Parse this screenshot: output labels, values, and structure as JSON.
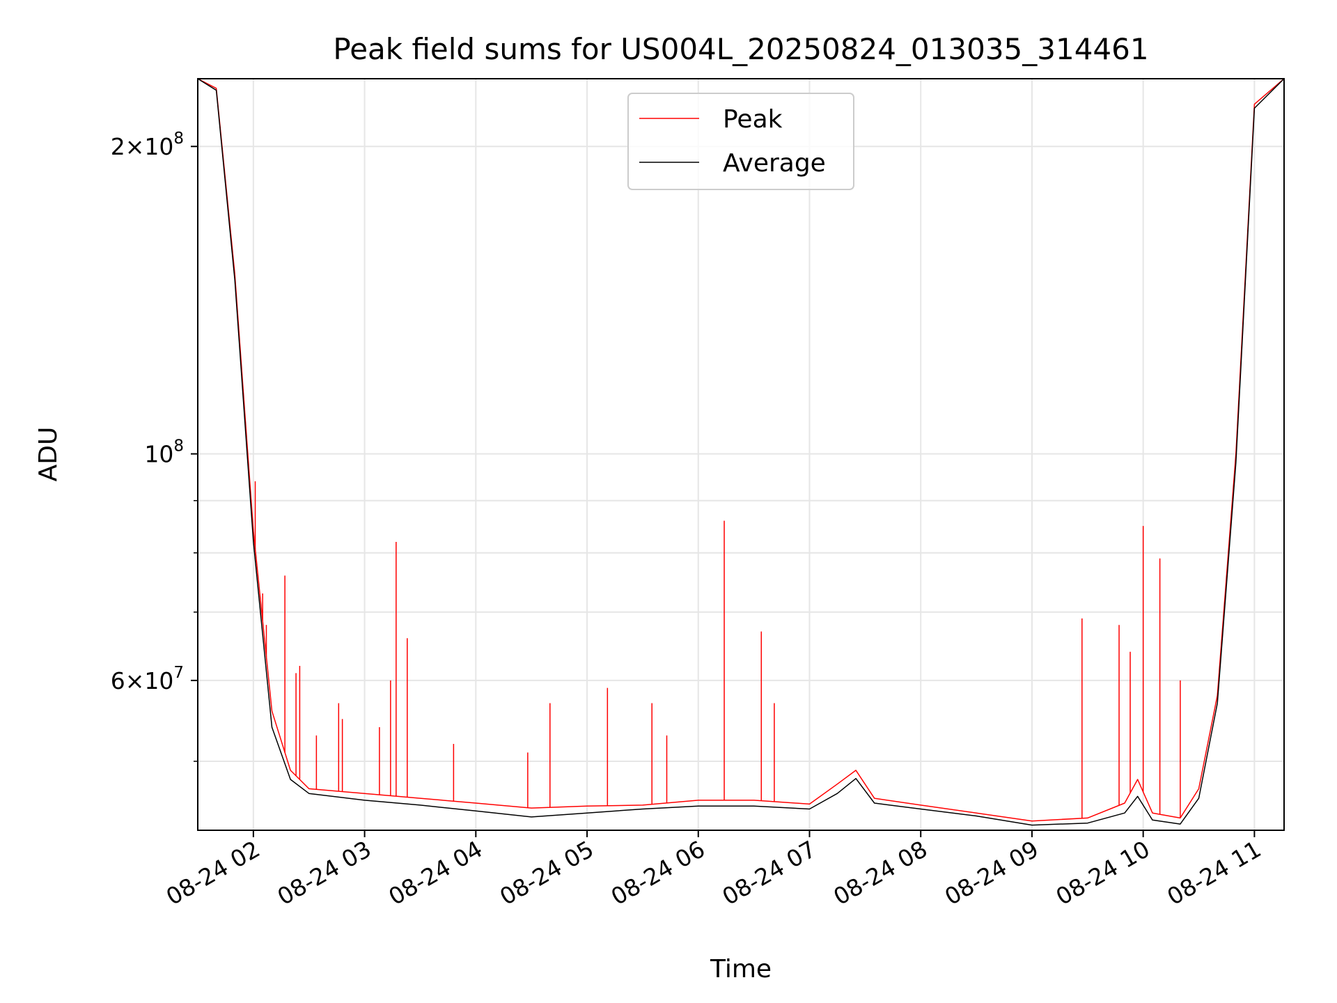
{
  "chart_data": {
    "type": "line",
    "title": "Peak field sums for US004L_20250824_013035_314461",
    "xlabel": "Time",
    "ylabel": "ADU",
    "y_scale": "log",
    "xlim": [
      "2025-08-24 01:30",
      "2025-08-24 11:16"
    ],
    "ylim": [
      42800000,
      233000000
    ],
    "grid": true,
    "legend_position": "top-center",
    "x_ticks": [
      {
        "value": "2025-08-24 02:00",
        "label": "08-24 02"
      },
      {
        "value": "2025-08-24 03:00",
        "label": "08-24 03"
      },
      {
        "value": "2025-08-24 04:00",
        "label": "08-24 04"
      },
      {
        "value": "2025-08-24 05:00",
        "label": "08-24 05"
      },
      {
        "value": "2025-08-24 06:00",
        "label": "08-24 06"
      },
      {
        "value": "2025-08-24 07:00",
        "label": "08-24 07"
      },
      {
        "value": "2025-08-24 08:00",
        "label": "08-24 08"
      },
      {
        "value": "2025-08-24 09:00",
        "label": "08-24 09"
      },
      {
        "value": "2025-08-24 10:00",
        "label": "08-24 10"
      },
      {
        "value": "2025-08-24 11:00",
        "label": "08-24 11"
      }
    ],
    "y_ticks_major": [
      {
        "value": 100000000,
        "base": "10",
        "exp": "8",
        "coef": ""
      },
      {
        "value": 200000000,
        "base": "10",
        "exp": "8",
        "coef": "2"
      },
      {
        "value": 60000000,
        "base": "10",
        "exp": "7",
        "coef": "6"
      }
    ],
    "y_ticks_minor": [
      50000000,
      70000000,
      80000000,
      90000000
    ],
    "series": [
      {
        "name": "Peak",
        "color": "#ff0000",
        "x": [
          "2025-08-24 01:30",
          "2025-08-24 01:40",
          "2025-08-24 01:50",
          "2025-08-24 02:00",
          "2025-08-24 02:10",
          "2025-08-24 02:20",
          "2025-08-24 02:30",
          "2025-08-24 03:00",
          "2025-08-24 03:30",
          "2025-08-24 04:00",
          "2025-08-24 04:30",
          "2025-08-24 05:00",
          "2025-08-24 05:30",
          "2025-08-24 06:00",
          "2025-08-24 06:30",
          "2025-08-24 07:00",
          "2025-08-24 07:15",
          "2025-08-24 07:25",
          "2025-08-24 07:35",
          "2025-08-24 08:00",
          "2025-08-24 08:30",
          "2025-08-24 09:00",
          "2025-08-24 09:30",
          "2025-08-24 09:50",
          "2025-08-24 09:57",
          "2025-08-24 10:05",
          "2025-08-24 10:20",
          "2025-08-24 10:30",
          "2025-08-24 10:40",
          "2025-08-24 10:50",
          "2025-08-24 11:00",
          "2025-08-24 11:16"
        ],
        "values": [
          233000000,
          228000000,
          150000000,
          84000000,
          56000000,
          49000000,
          47000000,
          46500000,
          46000000,
          45500000,
          45000000,
          45200000,
          45300000,
          45800000,
          45800000,
          45400000,
          47500000,
          49000000,
          46000000,
          45300000,
          44500000,
          43700000,
          44000000,
          45500000,
          48000000,
          44500000,
          44000000,
          47000000,
          58000000,
          100000000,
          220000000,
          233000000
        ]
      },
      {
        "name": "Average",
        "color": "#000000",
        "x": [
          "2025-08-24 01:30",
          "2025-08-24 01:40",
          "2025-08-24 01:50",
          "2025-08-24 02:00",
          "2025-08-24 02:10",
          "2025-08-24 02:20",
          "2025-08-24 02:30",
          "2025-08-24 03:00",
          "2025-08-24 03:30",
          "2025-08-24 04:00",
          "2025-08-24 04:30",
          "2025-08-24 05:00",
          "2025-08-24 05:30",
          "2025-08-24 06:00",
          "2025-08-24 06:30",
          "2025-08-24 07:00",
          "2025-08-24 07:15",
          "2025-08-24 07:25",
          "2025-08-24 07:35",
          "2025-08-24 08:00",
          "2025-08-24 08:30",
          "2025-08-24 09:00",
          "2025-08-24 09:30",
          "2025-08-24 09:50",
          "2025-08-24 09:57",
          "2025-08-24 10:05",
          "2025-08-24 10:20",
          "2025-08-24 10:30",
          "2025-08-24 10:40",
          "2025-08-24 10:50",
          "2025-08-24 11:00",
          "2025-08-24 11:16"
        ],
        "values": [
          233000000,
          227000000,
          148000000,
          82000000,
          54000000,
          48000000,
          46500000,
          45800000,
          45300000,
          44700000,
          44100000,
          44500000,
          44900000,
          45200000,
          45200000,
          44900000,
          46500000,
          48100000,
          45500000,
          44900000,
          44200000,
          43300000,
          43500000,
          44500000,
          46200000,
          43800000,
          43400000,
          46000000,
          57000000,
          98000000,
          218000000,
          233000000
        ]
      }
    ],
    "peak_spikes": [
      {
        "x": "2025-08-24 02:01",
        "y": 94000000
      },
      {
        "x": "2025-08-24 02:05",
        "y": 73000000
      },
      {
        "x": "2025-08-24 02:07",
        "y": 68000000
      },
      {
        "x": "2025-08-24 02:17",
        "y": 76000000
      },
      {
        "x": "2025-08-24 02:23",
        "y": 61000000
      },
      {
        "x": "2025-08-24 02:25",
        "y": 62000000
      },
      {
        "x": "2025-08-24 02:34",
        "y": 53000000
      },
      {
        "x": "2025-08-24 02:46",
        "y": 57000000
      },
      {
        "x": "2025-08-24 02:48",
        "y": 55000000
      },
      {
        "x": "2025-08-24 03:08",
        "y": 54000000
      },
      {
        "x": "2025-08-24 03:14",
        "y": 60000000
      },
      {
        "x": "2025-08-24 03:17",
        "y": 82000000
      },
      {
        "x": "2025-08-24 03:23",
        "y": 66000000
      },
      {
        "x": "2025-08-24 03:48",
        "y": 52000000
      },
      {
        "x": "2025-08-24 04:28",
        "y": 51000000
      },
      {
        "x": "2025-08-24 04:40",
        "y": 57000000
      },
      {
        "x": "2025-08-24 05:11",
        "y": 59000000
      },
      {
        "x": "2025-08-24 05:35",
        "y": 57000000
      },
      {
        "x": "2025-08-24 05:43",
        "y": 53000000
      },
      {
        "x": "2025-08-24 06:14",
        "y": 86000000
      },
      {
        "x": "2025-08-24 06:34",
        "y": 67000000
      },
      {
        "x": "2025-08-24 06:41",
        "y": 57000000
      },
      {
        "x": "2025-08-24 09:27",
        "y": 69000000
      },
      {
        "x": "2025-08-24 09:47",
        "y": 68000000
      },
      {
        "x": "2025-08-24 09:53",
        "y": 64000000
      },
      {
        "x": "2025-08-24 10:00",
        "y": 85000000
      },
      {
        "x": "2025-08-24 10:09",
        "y": 79000000
      },
      {
        "x": "2025-08-24 10:20",
        "y": 60000000
      }
    ]
  }
}
